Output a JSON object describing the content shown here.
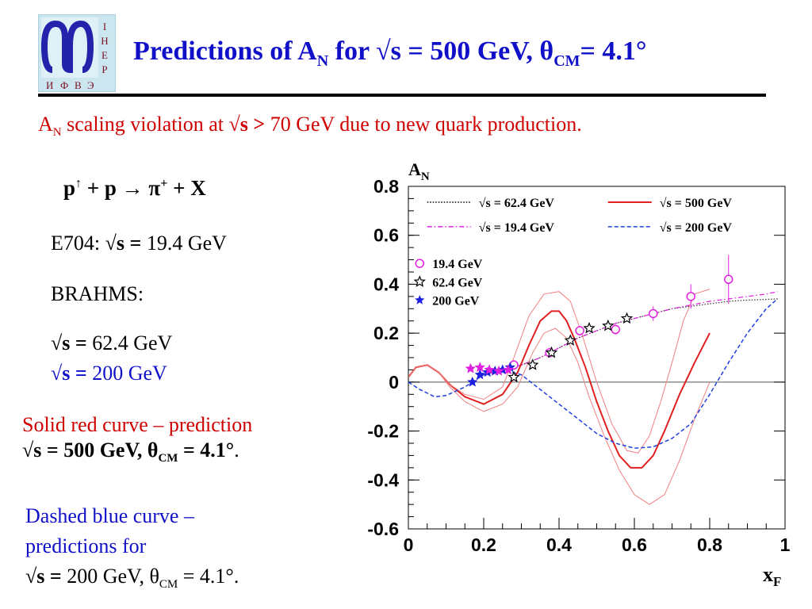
{
  "header": {
    "logo_letters": [
      "И",
      "Ф",
      "В",
      "Э",
      "I",
      "H",
      "E",
      "P"
    ],
    "title_pre": "Predictions of A",
    "title_sub": "N",
    "title_mid": " for √s = 500 GeV,  θ",
    "title_sub2": "CM",
    "title_post": "= 4.1°"
  },
  "subtitle": {
    "a": "A",
    "a_sub": "N",
    "text1": " scaling violation at √",
    "bold": "s >",
    "text2": " 70 GeV due to new quark production."
  },
  "left": {
    "reaction_p": "p",
    "reaction_arrow": "↑",
    "reaction_mid": " + p → π",
    "reaction_sup": "+",
    "reaction_end": "  + X",
    "e704_label": "E704: √",
    "e704_bold": "s =",
    "e704_val": " 19.4 GeV",
    "brahms": "BRAHMS:",
    "brahms1_pre": "√",
    "brahms1_bold": "s =",
    "brahms1_val": " 62.4 GeV",
    "brahms2_pre": "√",
    "brahms2_bold": "s =",
    "brahms2_val": " 200 GeV",
    "red_line1": "Solid red curve – prediction",
    "red_line2_pre": "√s = 500 GeV,  θ",
    "red_line2_sub": "CM",
    "red_line2_post": " =  4.1°",
    "red_line2_dot": ".",
    "blue_line1": "Dashed blue curve   –",
    "blue_line2": "predictions for",
    "blue_line3_pre": "√",
    "blue_line3_bold": "s =",
    "blue_line3_mid": " 200 GeV,  θ",
    "blue_line3_sub": "CM",
    "blue_line3_post": " =  4.1°."
  },
  "chart_data": {
    "type": "line",
    "ylabel": "A",
    "ylabel_sub": "N",
    "xlabel": "x",
    "xlabel_sub": "F",
    "xlim": [
      0,
      1
    ],
    "ylim": [
      -0.6,
      0.8
    ],
    "x_ticks": [
      "0",
      "0.2",
      "0.4",
      "0.6",
      "0.8",
      "1"
    ],
    "y_ticks": [
      "-0.6",
      "-0.4",
      "-0.2",
      "0",
      "0.2",
      "0.4",
      "0.6",
      "0.8"
    ],
    "grid": false,
    "legend_lines": [
      {
        "label": "√s = 62.4 GeV",
        "color": "#000000",
        "style": "dotted"
      },
      {
        "label": "√s = 500 GeV",
        "color": "#e02020",
        "style": "solid"
      },
      {
        "label": "√s = 19.4 GeV",
        "color": "#e020e0",
        "style": "dashdot"
      },
      {
        "label": "√s = 200 GeV",
        "color": "#2040e0",
        "style": "dashed"
      }
    ],
    "legend_markers": [
      {
        "label": "19.4 GeV",
        "color": "#e020e0",
        "marker": "open-circle"
      },
      {
        "label": "62.4 GeV",
        "color": "#000000",
        "marker": "open-star"
      },
      {
        "label": "200 GeV",
        "color": "#2020e0",
        "marker": "filled-star"
      }
    ],
    "series": [
      {
        "name": "√s = 62.4 GeV",
        "color": "#333333",
        "style": "dotted",
        "x": [
          0.2,
          0.25,
          0.3,
          0.35,
          0.4,
          0.45,
          0.5,
          0.55,
          0.6,
          0.65,
          0.7,
          0.75,
          0.8,
          0.85,
          0.9,
          0.95,
          0.98
        ],
        "y": [
          0.03,
          0.05,
          0.07,
          0.1,
          0.14,
          0.18,
          0.21,
          0.24,
          0.26,
          0.28,
          0.3,
          0.31,
          0.32,
          0.33,
          0.335,
          0.338,
          0.34
        ]
      },
      {
        "name": "√s = 19.4 GeV",
        "color": "#e020e0",
        "style": "dashdot",
        "x": [
          0.2,
          0.25,
          0.3,
          0.35,
          0.4,
          0.45,
          0.5,
          0.55,
          0.6,
          0.65,
          0.7,
          0.75,
          0.8,
          0.85,
          0.9,
          0.95,
          0.98
        ],
        "y": [
          0.03,
          0.05,
          0.07,
          0.1,
          0.14,
          0.18,
          0.21,
          0.24,
          0.26,
          0.28,
          0.3,
          0.315,
          0.33,
          0.34,
          0.35,
          0.36,
          0.37
        ]
      },
      {
        "name": "√s = 500 GeV",
        "color": "#e02020",
        "style": "solid",
        "width": 2,
        "x": [
          0.0,
          0.02,
          0.05,
          0.08,
          0.11,
          0.15,
          0.2,
          0.25,
          0.29,
          0.32,
          0.35,
          0.38,
          0.4,
          0.42,
          0.44,
          0.47,
          0.5,
          0.53,
          0.56,
          0.59,
          0.62,
          0.65,
          0.68,
          0.72,
          0.76,
          0.8
        ],
        "y": [
          0.02,
          0.06,
          0.07,
          0.04,
          -0.01,
          -0.06,
          -0.09,
          -0.05,
          0.04,
          0.15,
          0.25,
          0.29,
          0.29,
          0.25,
          0.18,
          0.06,
          -0.08,
          -0.2,
          -0.3,
          -0.35,
          -0.35,
          -0.3,
          -0.2,
          -0.05,
          0.08,
          0.2
        ]
      },
      {
        "name": "500 GeV upper band",
        "color": "#f08080",
        "style": "solid",
        "width": 1,
        "x": [
          0.0,
          0.02,
          0.05,
          0.08,
          0.11,
          0.15,
          0.2,
          0.25,
          0.28,
          0.32,
          0.36,
          0.4,
          0.43,
          0.46,
          0.5,
          0.54,
          0.58,
          0.61,
          0.64,
          0.67,
          0.7,
          0.73,
          0.76,
          0.8
        ],
        "y": [
          0.02,
          0.06,
          0.07,
          0.04,
          -0.01,
          -0.05,
          -0.07,
          -0.02,
          0.1,
          0.27,
          0.36,
          0.37,
          0.33,
          0.2,
          0.0,
          -0.17,
          -0.28,
          -0.29,
          -0.22,
          -0.08,
          0.08,
          0.25,
          0.36,
          0.38
        ]
      },
      {
        "name": "500 GeV lower band",
        "color": "#f08080",
        "style": "solid",
        "width": 1,
        "x": [
          0.0,
          0.02,
          0.05,
          0.08,
          0.11,
          0.15,
          0.2,
          0.25,
          0.29,
          0.33,
          0.36,
          0.39,
          0.42,
          0.45,
          0.48,
          0.52,
          0.56,
          0.6,
          0.64,
          0.68,
          0.72,
          0.76,
          0.8
        ],
        "y": [
          0.02,
          0.06,
          0.07,
          0.04,
          -0.02,
          -0.08,
          -0.12,
          -0.09,
          -0.02,
          0.12,
          0.2,
          0.22,
          0.18,
          0.08,
          -0.06,
          -0.22,
          -0.36,
          -0.46,
          -0.5,
          -0.46,
          -0.32,
          -0.15,
          0.0
        ]
      },
      {
        "name": "√s = 200 GeV",
        "color": "#2040e0",
        "style": "dashed",
        "width": 1.5,
        "x": [
          0.0,
          0.03,
          0.07,
          0.1,
          0.15,
          0.2,
          0.25,
          0.3,
          0.35,
          0.4,
          0.45,
          0.5,
          0.55,
          0.6,
          0.65,
          0.7,
          0.75,
          0.8,
          0.85,
          0.9,
          0.95,
          0.98
        ],
        "y": [
          0.0,
          -0.03,
          -0.06,
          -0.055,
          -0.02,
          0.03,
          0.05,
          0.03,
          -0.03,
          -0.09,
          -0.15,
          -0.21,
          -0.25,
          -0.27,
          -0.265,
          -0.23,
          -0.17,
          -0.05,
          0.08,
          0.2,
          0.3,
          0.34
        ]
      }
    ],
    "points": [
      {
        "series": "19.4 GeV",
        "marker": "open-circle",
        "color": "#e020e0",
        "x": [
          0.28,
          0.375,
          0.455,
          0.55,
          0.65,
          0.75,
          0.85
        ],
        "y": [
          0.07,
          0.12,
          0.21,
          0.215,
          0.28,
          0.35,
          0.42
        ],
        "err": [
          0.02,
          0.02,
          0.02,
          0.02,
          0.03,
          0.05,
          0.1
        ]
      },
      {
        "series": "62.4 GeV",
        "marker": "open-star",
        "color": "#000000",
        "x": [
          0.28,
          0.33,
          0.38,
          0.43,
          0.48,
          0.53,
          0.58
        ],
        "y": [
          0.02,
          0.07,
          0.12,
          0.17,
          0.22,
          0.23,
          0.26
        ],
        "err": [
          0.01,
          0.01,
          0.01,
          0.01,
          0.01,
          0.01,
          0.01
        ]
      },
      {
        "series": "200 GeV",
        "marker": "filled-star",
        "color": "#2020e0",
        "x": [
          0.17,
          0.19,
          0.21,
          0.23,
          0.25,
          0.27
        ],
        "y": [
          0.0,
          0.03,
          0.04,
          0.045,
          0.05,
          0.06
        ],
        "err": [
          0.0,
          0.0,
          0.0,
          0.0,
          0.0,
          0.0
        ]
      },
      {
        "series": "19.4 GeV stars",
        "marker": "filled-star",
        "color": "#e020e0",
        "x": [
          0.165,
          0.19,
          0.215,
          0.24,
          0.265
        ],
        "y": [
          0.055,
          0.06,
          0.05,
          0.045,
          0.05
        ],
        "err": [
          0.0,
          0.0,
          0.0,
          0.0,
          0.0
        ]
      }
    ]
  }
}
